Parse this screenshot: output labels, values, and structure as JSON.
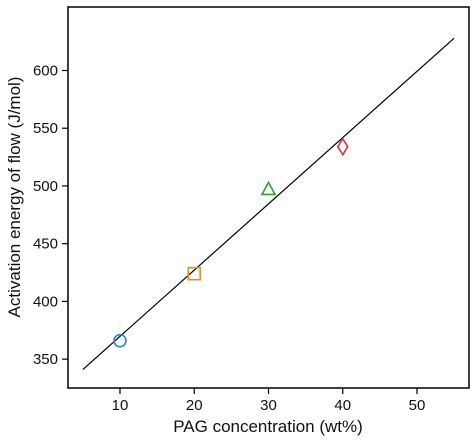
{
  "chart_data": {
    "type": "scatter",
    "title": "",
    "xlabel": "PAG concentration (wt%)",
    "ylabel": "Activation energy of flow (J/mol)",
    "xlim": [
      3,
      57
    ],
    "ylim": [
      325,
      655
    ],
    "x_ticks": [
      10,
      20,
      30,
      40,
      50
    ],
    "y_ticks": [
      350,
      400,
      450,
      500,
      550,
      600
    ],
    "points": [
      {
        "x": 10,
        "y": 366,
        "marker": "circle",
        "color": "#2e86c8"
      },
      {
        "x": 20,
        "y": 424,
        "marker": "square",
        "color": "#f08a24"
      },
      {
        "x": 30,
        "y": 497,
        "marker": "triangle",
        "color": "#2ca02c"
      },
      {
        "x": 40,
        "y": 534,
        "marker": "diamond",
        "color": "#d0363c"
      }
    ],
    "fit_line": {
      "x": [
        5,
        55
      ],
      "y": [
        341,
        628
      ],
      "color": "#000000"
    },
    "grid": false,
    "legend": "none"
  }
}
